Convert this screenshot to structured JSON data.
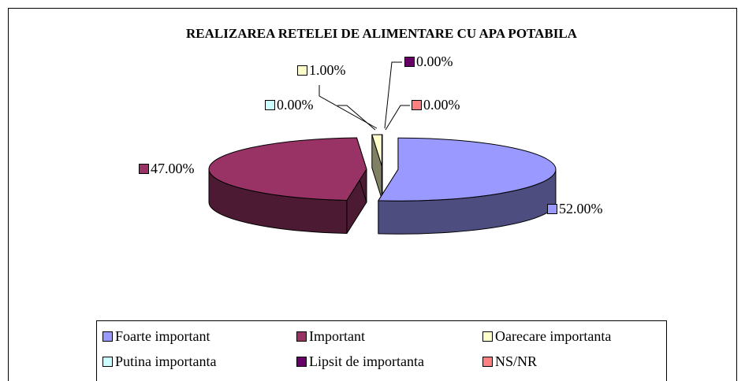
{
  "chart_data": {
    "type": "pie",
    "title": "REALIZAREA RETELEI DE ALIMENTARE CU APA POTABILA",
    "categories": [
      "Foarte important",
      "Important",
      "Oarecare importanta",
      "Putina importanta",
      "Lipsit de importanta",
      "NS/NR"
    ],
    "values": [
      52,
      47,
      1,
      0,
      0,
      0
    ],
    "value_labels": [
      "52.00%",
      "47.00%",
      "1.00%",
      "0.00%",
      "0.00%",
      "0.00%"
    ],
    "colors": [
      "#9999ff",
      "#993366",
      "#ffffcc",
      "#ccffff",
      "#660066",
      "#ff8080"
    ],
    "legend": "bottom"
  }
}
